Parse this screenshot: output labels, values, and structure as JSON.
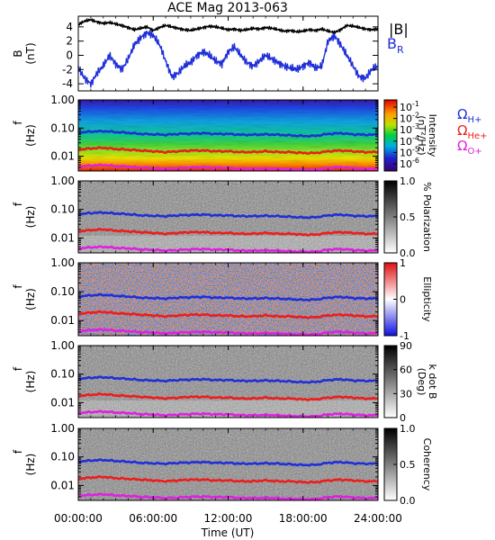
{
  "title": "ACE Mag 2013-063",
  "x_axis": {
    "label": "Time (UT)",
    "range_hours": [
      0,
      24
    ],
    "tick_hours": [
      0,
      6,
      12,
      18,
      24
    ],
    "tick_labels": [
      "00:00:00",
      "06:00:00",
      "12:00:00",
      "18:00:00",
      "24:00:00"
    ]
  },
  "colors": {
    "B_total": "#000000",
    "B_R": "#1f2fd8",
    "H_plus": "#1f2fd8",
    "He_plus": "#ee1c1c",
    "O_plus": "#e020e0"
  },
  "cyclotron_labels": [
    {
      "text": "Ω",
      "sub": "H+",
      "color": "#1f2fd8"
    },
    {
      "text": "Ω",
      "sub": "He+",
      "color": "#ee1c1c"
    },
    {
      "text": "Ω",
      "sub": "O+",
      "color": "#e020e0"
    }
  ],
  "freq_axis": {
    "label": "f",
    "unit": "(Hz)",
    "range": [
      0.003,
      1.0
    ],
    "scale": "log",
    "tick_values": [
      1.0,
      0.1,
      0.01
    ],
    "tick_labels": [
      "1.00",
      "0.10",
      "0.01"
    ]
  },
  "chart_data": [
    {
      "type": "line",
      "ylabel": "B",
      "yunit": "(nT)",
      "ylim": [
        -5,
        5.5
      ],
      "yticks": [
        4,
        2,
        0,
        -2,
        -4
      ],
      "legend": [
        {
          "text": "|B|",
          "color": "#000000"
        },
        {
          "text": "B",
          "sub": "R",
          "color": "#1f2fd8"
        }
      ],
      "series": [
        {
          "name": "|B|",
          "x": [
            0,
            0.5,
            1,
            1.5,
            2,
            2.5,
            3,
            3.5,
            4,
            4.5,
            5,
            5.5,
            6,
            6.5,
            7,
            7.5,
            8,
            8.5,
            9,
            9.5,
            10,
            10.5,
            11,
            11.5,
            12,
            12.5,
            13,
            13.5,
            14,
            14.5,
            15,
            15.5,
            16,
            16.5,
            17,
            17.5,
            18,
            18.5,
            19,
            19.5,
            20,
            20.5,
            21,
            21.5,
            22,
            22.5,
            23,
            23.5,
            24
          ],
          "y": [
            4.3,
            4.8,
            5.0,
            4.7,
            4.5,
            4.6,
            4.4,
            4.2,
            3.9,
            3.6,
            3.8,
            4.0,
            3.5,
            3.9,
            4.2,
            4.0,
            3.8,
            3.6,
            3.5,
            3.7,
            3.9,
            4.1,
            4.0,
            3.8,
            3.6,
            3.7,
            3.5,
            3.6,
            3.8,
            3.7,
            3.9,
            3.8,
            3.6,
            3.4,
            3.5,
            3.3,
            3.4,
            3.6,
            3.5,
            3.7,
            3.4,
            3.2,
            3.6,
            4.2,
            4.1,
            3.9,
            3.7,
            3.6,
            3.7
          ]
        },
        {
          "name": "B_R",
          "x": [
            0,
            0.5,
            1,
            1.5,
            2,
            2.5,
            3,
            3.5,
            4,
            4.5,
            5,
            5.5,
            6,
            6.5,
            7,
            7.5,
            8,
            8.5,
            9,
            9.5,
            10,
            10.5,
            11,
            11.5,
            12,
            12.5,
            13,
            13.5,
            14,
            14.5,
            15,
            15.5,
            16,
            16.5,
            17,
            17.5,
            18,
            18.5,
            19,
            19.5,
            20,
            20.5,
            21,
            21.5,
            22,
            22.5,
            23,
            23.5,
            24
          ],
          "y": [
            -1.8,
            -3.2,
            -4.0,
            -2.5,
            -1.5,
            0.0,
            -1.2,
            -2.0,
            -0.5,
            1.5,
            2.5,
            3.2,
            2.8,
            1.5,
            -0.8,
            -3.0,
            -2.5,
            -1.5,
            -1.0,
            0.0,
            0.5,
            0.0,
            -0.8,
            -1.2,
            0.5,
            1.2,
            0.0,
            -1.0,
            -1.5,
            -0.8,
            0.0,
            -0.5,
            -1.0,
            -1.5,
            -1.8,
            -2.0,
            -1.5,
            -1.0,
            -1.8,
            -1.5,
            2.0,
            2.8,
            1.5,
            0.0,
            -1.5,
            -3.0,
            -3.2,
            -2.0,
            -1.5
          ]
        }
      ]
    },
    {
      "type": "heatmap",
      "ylabel": "f",
      "yunit": "(Hz)",
      "colorbar_label": "Intensity (nT²/Hz)",
      "colorbar_title": "Intensity",
      "colorbar_unit": "(nT²/Hz)",
      "colorbar_ticks": [
        "10",
        "10",
        "10",
        "10",
        "10",
        "10"
      ],
      "colorbar_tick_exponents": [
        "-1",
        "-2",
        "-3",
        "-4",
        "-5",
        "-6"
      ],
      "colormap": "rainbow",
      "value_range": [
        1e-06,
        0.1
      ]
    },
    {
      "type": "heatmap",
      "ylabel": "f",
      "yunit": "(Hz)",
      "colorbar_label": "% Polarization",
      "colorbar_ticks": [
        "1.0",
        "0.5",
        "0.0"
      ],
      "colormap": "gray_reversed",
      "value_range": [
        0.0,
        1.0
      ]
    },
    {
      "type": "heatmap",
      "ylabel": "f",
      "yunit": "(Hz)",
      "colorbar_label": "Ellipticity",
      "colorbar_ticks": [
        "1",
        "0",
        "-1"
      ],
      "colormap": "blue_white_red",
      "value_range": [
        -1,
        1
      ]
    },
    {
      "type": "heatmap",
      "ylabel": "f",
      "yunit": "(Hz)",
      "colorbar_label": "k dot B (Deg)",
      "colorbar_title": "k dot B",
      "colorbar_unit": "(Deg)",
      "colorbar_ticks": [
        "90",
        "60",
        "30",
        "0"
      ],
      "colormap": "gray_reversed",
      "value_range": [
        0,
        90
      ]
    },
    {
      "type": "heatmap",
      "ylabel": "f",
      "yunit": "(Hz)",
      "colorbar_label": "Coherency",
      "colorbar_ticks": [
        "1.0",
        "0.5",
        "0.0"
      ],
      "colormap": "gray_reversed",
      "value_range": [
        0.0,
        1.0
      ]
    }
  ],
  "gyrofrequency_lines": {
    "x": [
      0,
      1,
      2,
      3,
      4,
      5,
      6,
      7,
      8,
      9,
      10,
      11,
      12,
      13,
      14,
      15,
      16,
      17,
      18,
      19,
      20,
      21,
      22,
      23,
      24
    ],
    "H_plus_Hz": [
      0.068,
      0.075,
      0.078,
      0.072,
      0.068,
      0.062,
      0.06,
      0.058,
      0.062,
      0.064,
      0.066,
      0.062,
      0.062,
      0.058,
      0.058,
      0.06,
      0.058,
      0.055,
      0.052,
      0.053,
      0.062,
      0.066,
      0.06,
      0.058,
      0.058
    ],
    "He_plus_Hz": [
      0.017,
      0.019,
      0.02,
      0.018,
      0.017,
      0.016,
      0.015,
      0.014,
      0.015,
      0.016,
      0.016,
      0.015,
      0.015,
      0.014,
      0.014,
      0.015,
      0.014,
      0.014,
      0.013,
      0.013,
      0.015,
      0.016,
      0.015,
      0.014,
      0.014
    ],
    "O_plus_Hz": [
      0.0043,
      0.0047,
      0.0049,
      0.0045,
      0.0043,
      0.004,
      0.0038,
      0.0036,
      0.0038,
      0.004,
      0.0041,
      0.0039,
      0.0039,
      0.0036,
      0.0036,
      0.0037,
      0.0036,
      0.0034,
      0.0033,
      0.0033,
      0.0039,
      0.0041,
      0.0038,
      0.0036,
      0.0036
    ]
  }
}
